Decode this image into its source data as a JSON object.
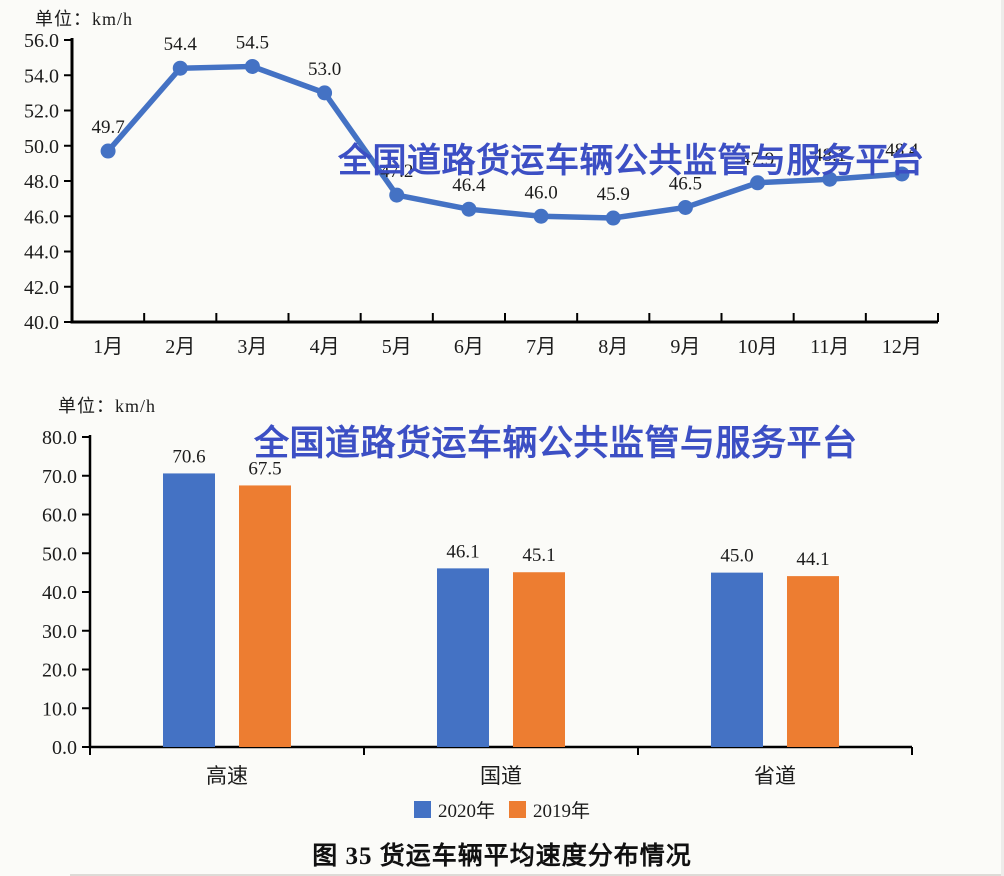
{
  "watermark": {
    "text": "全国道路货运车辆公共监管与服务平台",
    "color": "#3c4fc4"
  },
  "caption": "图 35  货运车辆平均速度分布情况",
  "axis_color": "#000000",
  "text_color": "#1c1c1c",
  "chart_data": [
    {
      "type": "line",
      "unit": "单位：km/h",
      "categories": [
        "1月",
        "2月",
        "3月",
        "4月",
        "5月",
        "6月",
        "7月",
        "8月",
        "9月",
        "10月",
        "11月",
        "12月"
      ],
      "series": [
        {
          "color": "#4472c4",
          "values": [
            49.7,
            54.4,
            54.5,
            53.0,
            47.2,
            46.4,
            46.0,
            45.9,
            46.5,
            47.9,
            48.1,
            48.4
          ]
        }
      ],
      "ylim": [
        40.0,
        56.0
      ],
      "ytick_step": 2.0,
      "grid": false,
      "data_labels": true,
      "legend_position": "none"
    },
    {
      "type": "bar",
      "unit": "单位：km/h",
      "categories": [
        "高速",
        "国道",
        "省道"
      ],
      "series": [
        {
          "name": "2020年",
          "color": "#4472c4",
          "values": [
            70.6,
            46.1,
            45.0
          ]
        },
        {
          "name": "2019年",
          "color": "#ed7d31",
          "values": [
            67.5,
            45.1,
            44.1
          ]
        }
      ],
      "ylim": [
        0.0,
        80.0
      ],
      "ytick_step": 10.0,
      "grid": false,
      "data_labels": true,
      "legend_position": "bottom"
    }
  ]
}
